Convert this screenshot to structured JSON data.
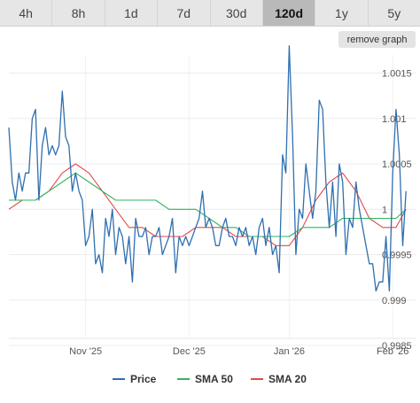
{
  "tabs": [
    {
      "label": "4h",
      "active": false
    },
    {
      "label": "8h",
      "active": false
    },
    {
      "label": "1d",
      "active": false
    },
    {
      "label": "7d",
      "active": false
    },
    {
      "label": "30d",
      "active": false
    },
    {
      "label": "120d",
      "active": true
    },
    {
      "label": "1y",
      "active": false
    },
    {
      "label": "5y",
      "active": false
    }
  ],
  "remove_graph_label": "remove graph",
  "chart_data": {
    "type": "line",
    "title": "",
    "xlabel": "",
    "ylabel": "",
    "ylim": [
      0.9985,
      1.0017
    ],
    "x_tick_labels": [
      "Nov '25",
      "Dec '25",
      "Jan '26",
      "Feb '26"
    ],
    "x_tick_positions": [
      23,
      54,
      84,
      115
    ],
    "xlim": [
      0,
      120
    ],
    "y_tick_labels": [
      "1.0015",
      "1.001",
      "1.0005",
      "1",
      "0.9995",
      "0.999",
      "0.9985"
    ],
    "y_tick_values": [
      1.0015,
      1.001,
      1.0005,
      1.0,
      0.9995,
      0.999,
      0.9985
    ],
    "grid": true,
    "legend": "bottom",
    "series": [
      {
        "name": "Price",
        "color": "#2f6fb0",
        "x": [
          0,
          1,
          2,
          3,
          4,
          5,
          6,
          7,
          8,
          9,
          10,
          11,
          12,
          13,
          14,
          15,
          16,
          17,
          18,
          19,
          20,
          21,
          22,
          23,
          24,
          25,
          26,
          27,
          28,
          29,
          30,
          31,
          32,
          33,
          34,
          35,
          36,
          37,
          38,
          39,
          40,
          41,
          42,
          43,
          44,
          45,
          46,
          47,
          48,
          49,
          50,
          51,
          52,
          53,
          54,
          55,
          56,
          57,
          58,
          59,
          60,
          61,
          62,
          63,
          64,
          65,
          66,
          67,
          68,
          69,
          70,
          71,
          72,
          73,
          74,
          75,
          76,
          77,
          78,
          79,
          80,
          81,
          82,
          83,
          84,
          85,
          86,
          87,
          88,
          89,
          90,
          91,
          92,
          93,
          94,
          95,
          96,
          97,
          98,
          99,
          100,
          101,
          102,
          103,
          104,
          105,
          106,
          107,
          108,
          109,
          110,
          111,
          112,
          113,
          114,
          115,
          116,
          117,
          118,
          119
        ],
        "values": [
          1.0009,
          1.0003,
          1.0001,
          1.0004,
          1.0002,
          1.0004,
          1.0004,
          1.001,
          1.0011,
          1.0001,
          1.0007,
          1.0009,
          1.0006,
          1.0007,
          1.0006,
          1.0007,
          1.0013,
          1.0008,
          1.0007,
          1.0002,
          1.0004,
          1.0002,
          1.0001,
          0.9996,
          0.9997,
          1.0,
          0.9994,
          0.9995,
          0.9993,
          0.9999,
          0.9997,
          1.0,
          0.9995,
          0.9998,
          0.9997,
          0.9994,
          0.9997,
          0.9992,
          0.9999,
          0.9997,
          0.9997,
          0.9998,
          0.9995,
          0.9997,
          0.9997,
          0.9998,
          0.9995,
          0.9996,
          0.9997,
          0.9999,
          0.9993,
          0.9997,
          0.9996,
          0.9997,
          0.9996,
          0.9997,
          0.9998,
          0.9999,
          1.0002,
          0.9998,
          0.9999,
          0.9998,
          0.9996,
          0.9996,
          0.9998,
          0.9999,
          0.9997,
          0.9997,
          0.9996,
          0.9998,
          0.9997,
          0.9998,
          0.9996,
          0.9997,
          0.9995,
          0.9998,
          0.9999,
          0.9996,
          0.9998,
          0.9995,
          0.9996,
          0.9993,
          1.0006,
          1.0004,
          1.0018,
          1.0008,
          0.9995,
          1.0,
          0.9999,
          1.0005,
          1.0002,
          0.9999,
          1.0002,
          1.0012,
          1.0011,
          1.0003,
          0.9998,
          1.0003,
          0.9997,
          1.0005,
          1.0003,
          0.9995,
          0.9999,
          0.9998,
          1.0003,
          1.0,
          0.9998,
          0.9996,
          0.9994,
          0.9994,
          0.9991,
          0.9992,
          0.9992,
          0.9997,
          0.9991,
          1.0004,
          1.0011,
          1.0006,
          0.9996,
          1.0002
        ]
      },
      {
        "name": "SMA 50",
        "color": "#2cb561",
        "x": [
          0,
          4,
          8,
          12,
          16,
          20,
          24,
          28,
          32,
          36,
          40,
          44,
          48,
          52,
          56,
          60,
          64,
          68,
          72,
          76,
          80,
          84,
          88,
          92,
          96,
          100,
          104,
          108,
          112,
          116,
          119
        ],
        "values": [
          1.0001,
          1.0001,
          1.0001,
          1.0002,
          1.0003,
          1.0004,
          1.0003,
          1.0002,
          1.0001,
          1.0001,
          1.0001,
          1.0001,
          1.0,
          1.0,
          1.0,
          0.9999,
          0.9998,
          0.9998,
          0.9997,
          0.9997,
          0.9997,
          0.9997,
          0.9998,
          0.9998,
          0.9998,
          0.9999,
          0.9999,
          0.9999,
          0.9999,
          0.9999,
          1.0
        ]
      },
      {
        "name": "SMA 20",
        "color": "#e04a4a",
        "x": [
          0,
          4,
          8,
          12,
          16,
          20,
          24,
          28,
          32,
          36,
          40,
          44,
          48,
          52,
          56,
          60,
          64,
          68,
          72,
          76,
          80,
          84,
          88,
          92,
          96,
          100,
          104,
          108,
          112,
          116,
          119
        ],
        "values": [
          1.0,
          1.0001,
          1.0001,
          1.0002,
          1.0004,
          1.0005,
          1.0004,
          1.0002,
          1.0,
          0.9998,
          0.9998,
          0.9997,
          0.9997,
          0.9997,
          0.9998,
          0.9998,
          0.9998,
          0.9997,
          0.9997,
          0.9997,
          0.9996,
          0.9996,
          0.9998,
          1.0001,
          1.0003,
          1.0004,
          1.0002,
          0.9999,
          0.9998,
          0.9998,
          1.0
        ]
      }
    ]
  }
}
